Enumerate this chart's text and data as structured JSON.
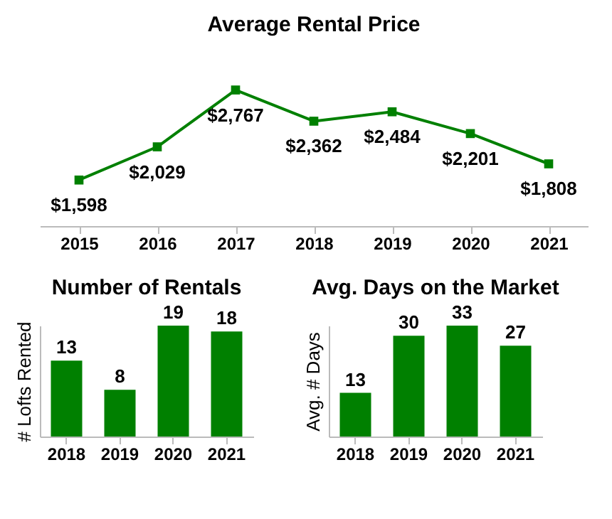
{
  "chart_data": [
    {
      "type": "line",
      "title": "Average Rental Price",
      "categories": [
        "2015",
        "2016",
        "2017",
        "2018",
        "2019",
        "2020",
        "2021"
      ],
      "series": [
        {
          "color": "#008000",
          "values": [
            1598,
            2029,
            2767,
            2362,
            2484,
            2201,
            1808
          ],
          "value_labels": [
            "$1,598",
            "$2,029",
            "$2,767",
            "$2,362",
            "$2,484",
            "$2,201",
            "$1,808"
          ]
        }
      ],
      "marker": "square",
      "grid": false,
      "tick_labels": "x"
    },
    {
      "type": "bar",
      "title": "Number of Rentals",
      "ylabel": "# Lofts Rented",
      "categories": [
        "2018",
        "2019",
        "2020",
        "2021"
      ],
      "series": [
        {
          "color": "#008000",
          "values": [
            13,
            8,
            19,
            18
          ]
        }
      ],
      "data_labels": true,
      "grid": false,
      "tick_labels": "x"
    },
    {
      "type": "bar",
      "title": "Avg. Days on the Market",
      "ylabel": "Avg. # Days",
      "categories": [
        "2018",
        "2019",
        "2020",
        "2021"
      ],
      "series": [
        {
          "color": "#008000",
          "values": [
            13,
            30,
            33,
            27
          ]
        }
      ],
      "data_labels": true,
      "grid": false,
      "tick_labels": "x"
    }
  ]
}
